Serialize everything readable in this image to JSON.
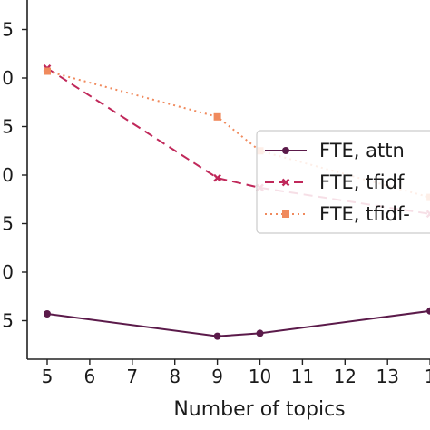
{
  "chart_data": {
    "type": "line",
    "xlabel": "Number of topics",
    "ylabel": "",
    "x_ticks": [
      "5",
      "6",
      "7",
      "8",
      "9",
      "10",
      "11",
      "12",
      "13",
      "1"
    ],
    "y_ticks": [
      "5",
      "0",
      "5",
      "0",
      "5",
      "0",
      "5"
    ],
    "series": [
      {
        "name": "FTE, attn",
        "color": "#5b1a4a",
        "style": "solid",
        "marker": "circle",
        "x": [
          5,
          9,
          10,
          14
        ],
        "y": [
          0.57,
          0.34,
          0.37,
          0.6
        ]
      },
      {
        "name": "FTE, tfidf",
        "color": "#c0285a",
        "style": "dashed",
        "marker": "x",
        "x": [
          5,
          9,
          10,
          14
        ],
        "y": [
          3.1,
          1.97,
          1.87,
          1.6
        ]
      },
      {
        "name": "FTE, tfidf-",
        "color": "#f08a5d",
        "style": "dotted",
        "marker": "square",
        "x": [
          5,
          9,
          10,
          14
        ],
        "y": [
          3.07,
          2.6,
          2.25,
          1.77
        ]
      }
    ]
  }
}
